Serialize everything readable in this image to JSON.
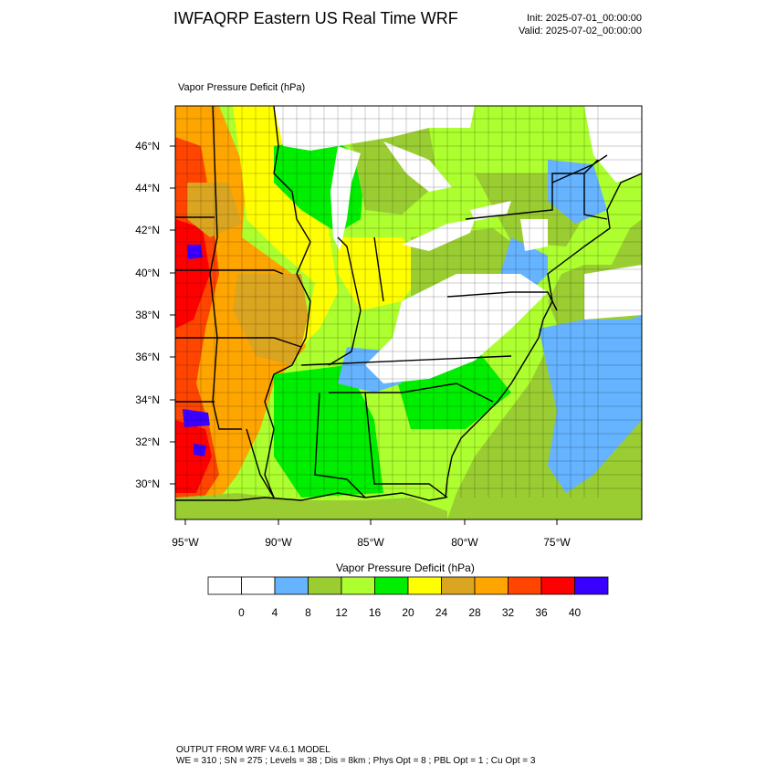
{
  "header": {
    "title": "IWFAQRP Eastern US Real Time WRF",
    "init": "Init: 2025-07-01_00:00:00",
    "valid": "Valid: 2025-07-02_00:00:00"
  },
  "map": {
    "field_label": "Vapor Pressure Deficit   (hPa)",
    "lat_labels": [
      "46°N",
      "44°N",
      "42°N",
      "40°N",
      "38°N",
      "36°N",
      "34°N",
      "32°N",
      "30°N"
    ],
    "lon_labels": [
      "95°W",
      "90°W",
      "85°W",
      "80°W",
      "75°W"
    ]
  },
  "colorbar": {
    "title": "Vapor Pressure Deficit  (hPa)",
    "colors": [
      "#ffffff",
      "#ffffff",
      "#66b3ff",
      "#9acd32",
      "#adff2f",
      "#00ee00",
      "#ffff00",
      "#daa520",
      "#ffa500",
      "#ff4500",
      "#ff0000",
      "#3a00ff"
    ],
    "tick_labels": [
      "0",
      "4",
      "8",
      "12",
      "16",
      "20",
      "24",
      "28",
      "32",
      "36",
      "40"
    ]
  },
  "footer": {
    "line1": "OUTPUT FROM WRF V4.6.1 MODEL",
    "line2": "WE = 310 ; SN = 275 ; Levels = 38 ; Dis = 8km ; Phys Opt = 8 ; PBL Opt = 1 ; Cu Opt = 3"
  }
}
